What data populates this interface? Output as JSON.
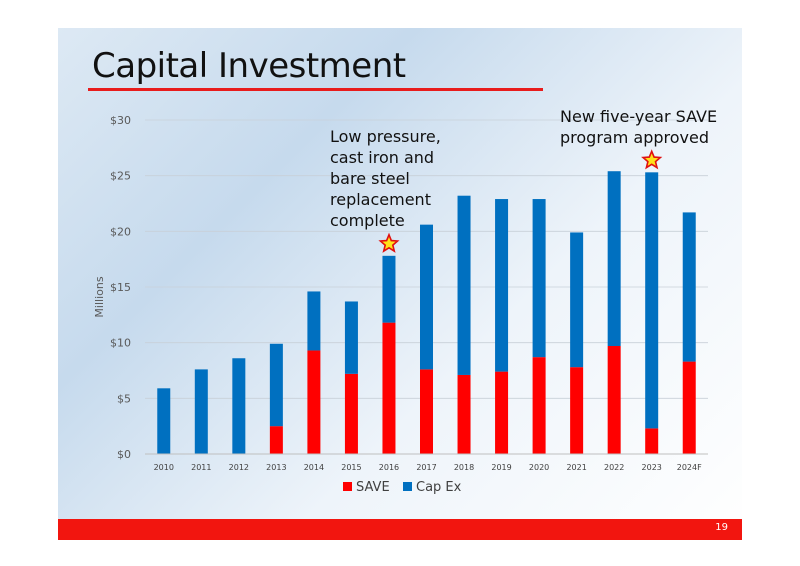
{
  "slide": {
    "title": "Capital Investment",
    "page_number": "19",
    "annotation_left": [
      "Low pressure,",
      "cast iron and",
      "bare steel",
      "replacement",
      "complete"
    ],
    "annotation_right": [
      "New five-year SAVE",
      "program approved"
    ],
    "accent_color": "#e81c1c"
  },
  "chart_data": {
    "type": "bar",
    "stacked": true,
    "title": "",
    "xlabel": "",
    "ylabel": "Millions",
    "ylim": [
      0,
      30
    ],
    "y_ticks": [
      0,
      5,
      10,
      15,
      20,
      25,
      30
    ],
    "y_tick_labels": [
      "$0",
      "$5",
      "$10",
      "$15",
      "$20",
      "$25",
      "$30"
    ],
    "grid": true,
    "legend_position": "bottom",
    "categories": [
      "2010",
      "2011",
      "2012",
      "2013",
      "2014",
      "2015",
      "2016",
      "2017",
      "2018",
      "2019",
      "2020",
      "2021",
      "2022",
      "2023",
      "2024F"
    ],
    "series": [
      {
        "name": "SAVE",
        "color": "#ff0000",
        "values": [
          0,
          0,
          0,
          2.5,
          9.3,
          7.2,
          11.8,
          7.6,
          7.1,
          7.4,
          8.7,
          7.8,
          9.7,
          2.3,
          8.3
        ]
      },
      {
        "name": "Cap Ex",
        "color": "#0070c0",
        "values": [
          5.9,
          7.6,
          8.6,
          7.4,
          5.3,
          6.5,
          6.0,
          13.0,
          16.1,
          15.5,
          14.2,
          12.1,
          15.7,
          23.0,
          13.4
        ]
      }
    ],
    "markers": [
      {
        "category": "2016",
        "symbol": "star"
      },
      {
        "category": "2023",
        "symbol": "star"
      }
    ]
  }
}
